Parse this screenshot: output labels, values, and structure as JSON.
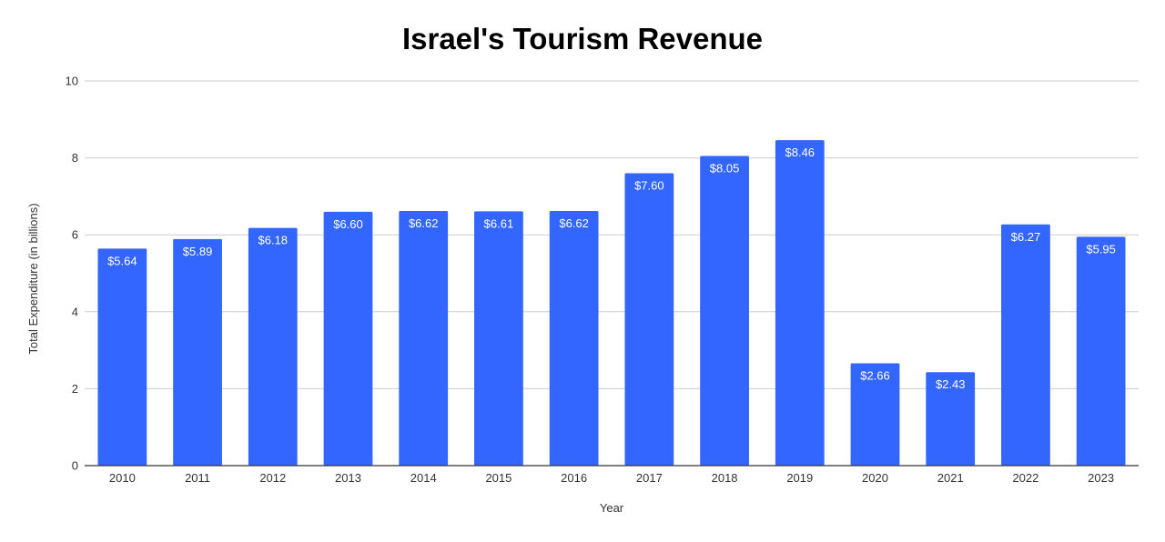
{
  "chart_data": {
    "type": "bar",
    "title": "Israel's Tourism Revenue",
    "xlabel": "Year",
    "ylabel": "Total Expenditure (in billions)",
    "categories": [
      "2010",
      "2011",
      "2012",
      "2013",
      "2014",
      "2015",
      "2016",
      "2017",
      "2018",
      "2019",
      "2020",
      "2021",
      "2022",
      "2023"
    ],
    "values": [
      5.64,
      5.89,
      6.18,
      6.6,
      6.62,
      6.61,
      6.62,
      7.6,
      8.05,
      8.46,
      2.66,
      2.43,
      6.27,
      5.95
    ],
    "data_labels": [
      "$5.64",
      "$5.89",
      "$6.18",
      "$6.60",
      "$6.62",
      "$6.61",
      "$6.62",
      "$7.60",
      "$8.05",
      "$8.46",
      "$2.66",
      "$2.43",
      "$6.27",
      "$5.95"
    ],
    "ylim": [
      0,
      10
    ],
    "yticks": [
      "0",
      "2",
      "4",
      "6",
      "8",
      "10"
    ],
    "grid": true,
    "legend": "none",
    "bar_color": "#3366ff",
    "grid_color": "#cccccc",
    "axis_color": "#333333"
  }
}
